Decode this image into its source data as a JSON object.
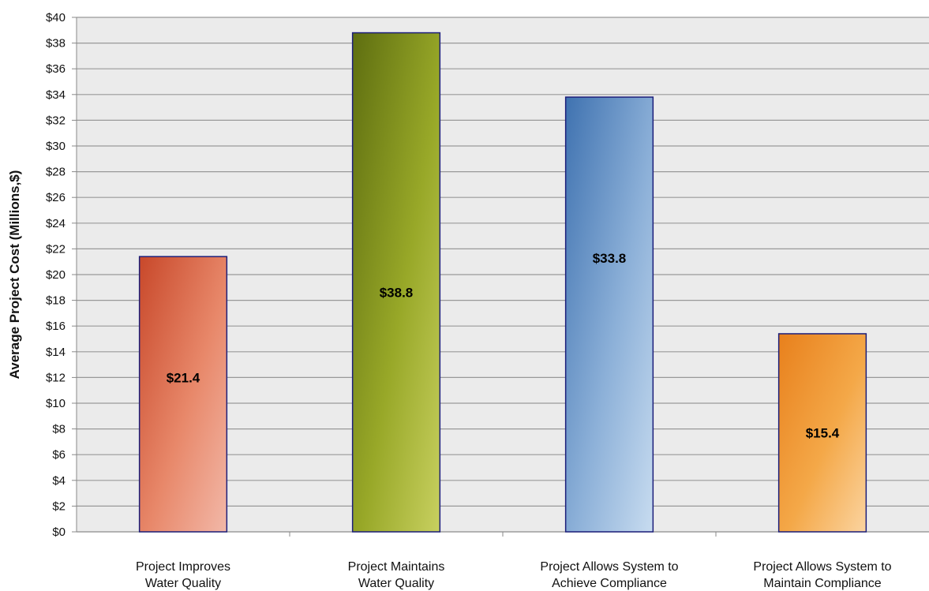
{
  "chart_data": {
    "type": "bar",
    "title": "",
    "xlabel": "",
    "ylabel": "Average Project Cost (Millions,$)",
    "ylim": [
      0,
      40
    ],
    "ytick_step": 2,
    "ytick_prefix": "$",
    "grid": true,
    "categories": [
      [
        "Project Improves",
        "Water Quality"
      ],
      [
        "Project Maintains",
        "Water Quality"
      ],
      [
        "Project Allows System to",
        "Achieve Compliance"
      ],
      [
        "Project Allows System to",
        "Maintain Compliance"
      ]
    ],
    "values": [
      21.4,
      38.8,
      33.8,
      15.4
    ],
    "data_labels": [
      "$21.4",
      "$38.8",
      "$33.8",
      "$15.4"
    ],
    "bar_colors": [
      [
        "#c8482a",
        "#e8886a",
        "#f2b8a8"
      ],
      [
        "#5e6e10",
        "#98a828",
        "#c8d060"
      ],
      [
        "#3f72b0",
        "#8cb0d8",
        "#c8dcf0"
      ],
      [
        "#e8801c",
        "#f4a848",
        "#fbd4a0"
      ]
    ],
    "plot_background": "#ebebeb",
    "bar_border": "#1c1e7a"
  }
}
